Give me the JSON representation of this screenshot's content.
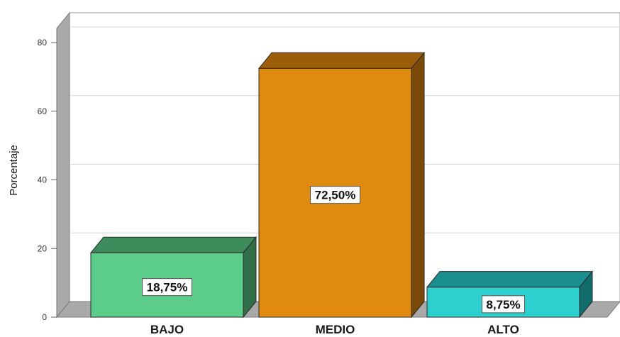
{
  "chart_data": {
    "type": "bar",
    "categories": [
      "BAJO",
      "MEDIO",
      "ALTO"
    ],
    "values": [
      18.75,
      72.5,
      8.75
    ],
    "data_labels": [
      "18,75%",
      "72,50%",
      "8,75%"
    ],
    "ylabel": "Porcentaje",
    "ylim": [
      0,
      80
    ],
    "yticks": [
      0,
      20,
      40,
      60,
      80
    ],
    "grid": true,
    "style": "3d",
    "colors": {
      "front": [
        "#5ccc8a",
        "#e08a10",
        "#2ed0cf"
      ],
      "top": [
        "#3e8c5c",
        "#9a5e0a",
        "#1a8f8e"
      ],
      "side": [
        "#2f6e47",
        "#7a4807",
        "#136c6c"
      ]
    }
  }
}
